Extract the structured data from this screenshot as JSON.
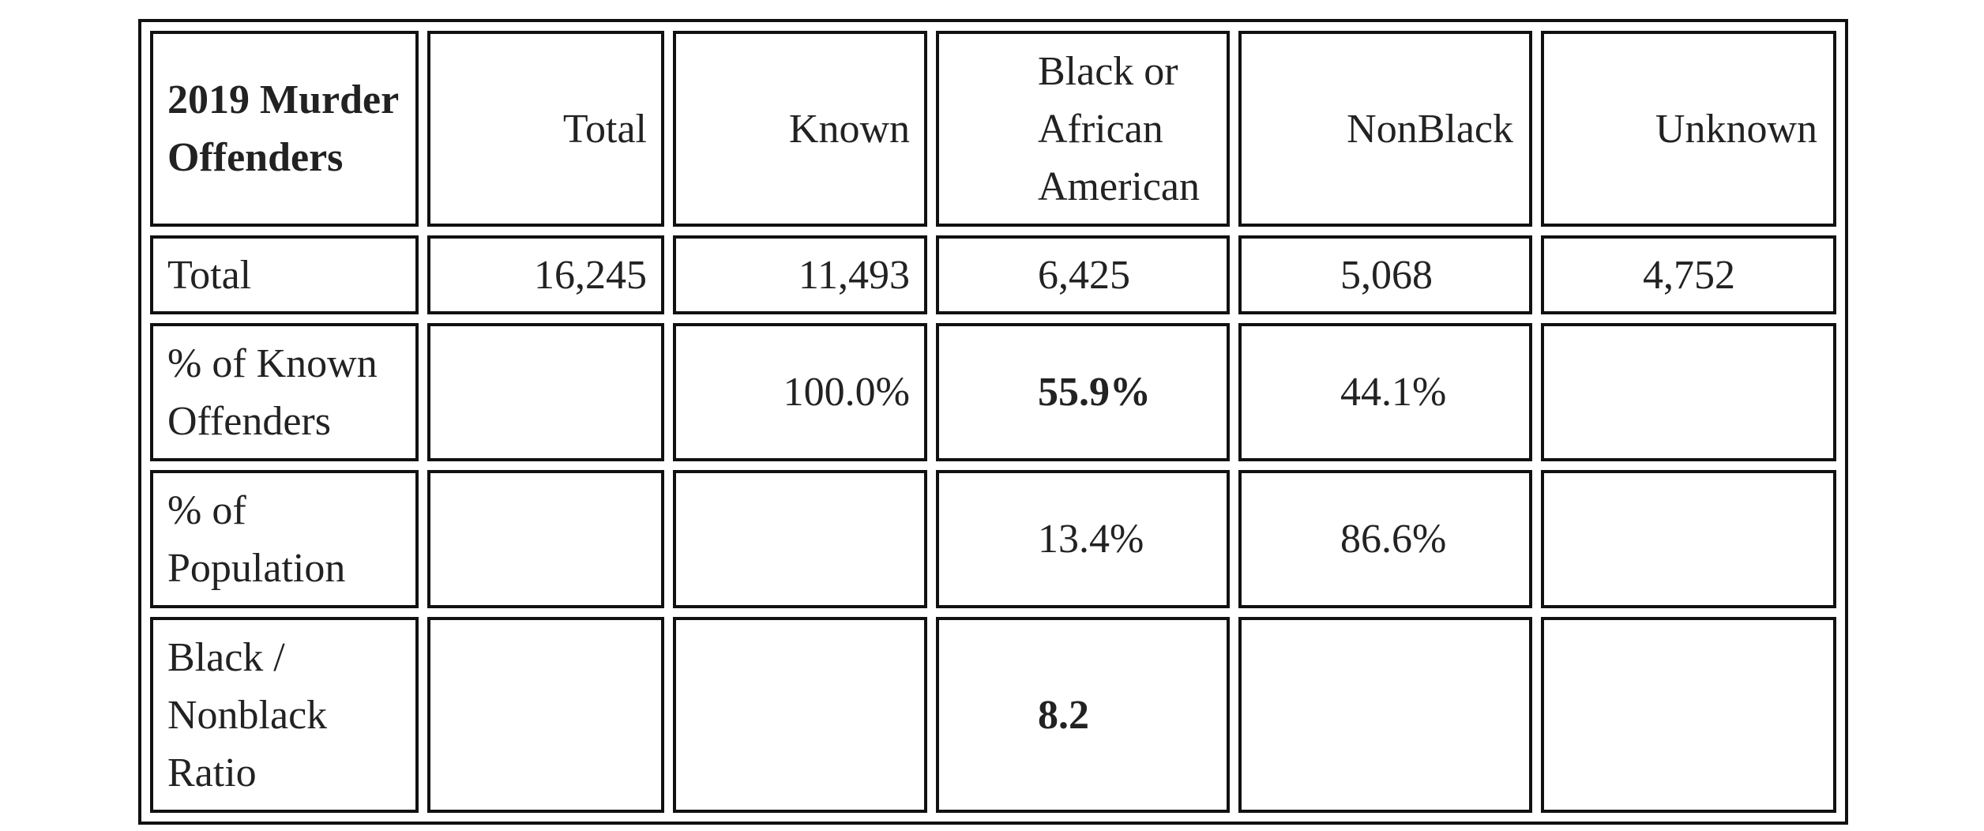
{
  "table": {
    "header": [
      "2019 Murder Offenders",
      "Total",
      "Known",
      "Black or African American",
      "NonBlack",
      "Unknown"
    ],
    "rows": [
      [
        "Total",
        "16,245",
        "11,493",
        "6,425",
        "5,068",
        "4,752"
      ],
      [
        "% of Known Offenders",
        null,
        "100.0%",
        "55.9%",
        "44.1%",
        null
      ],
      [
        "% of Population",
        null,
        null,
        "13.4%",
        "86.6%",
        null
      ],
      [
        "Black / Nonblack Ratio",
        null,
        null,
        "8.2",
        null,
        null
      ]
    ]
  }
}
